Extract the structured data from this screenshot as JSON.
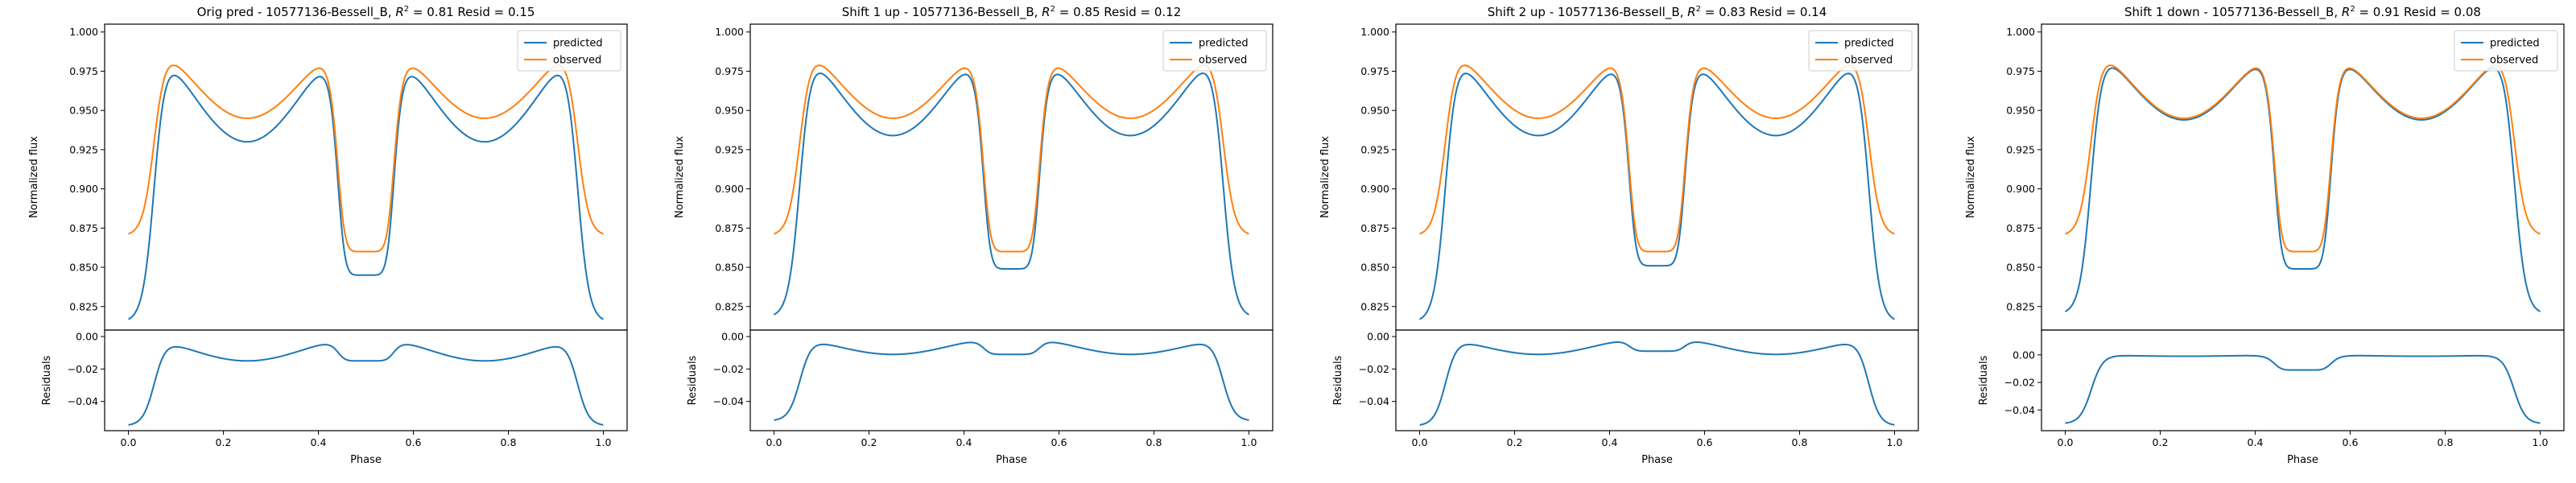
{
  "figure": {
    "xlabel": "Phase",
    "top_ylabel": "Normalized flux",
    "bottom_ylabel": "Residuals"
  },
  "colors": {
    "predicted": "#1f77b4",
    "observed": "#ff7f0e",
    "axes": "#000000"
  },
  "legend": {
    "placement": "upper right",
    "labels": [
      "predicted",
      "observed"
    ]
  },
  "chart_data": [
    {
      "type": "line",
      "title_prefix": "Orig pred - 10577136-Bessell_B, ",
      "r2_symbol": "R",
      "r2_sup": "2",
      "title_suffix": " = 0.81 Resid = 0.15",
      "pred_params": {
        "base": 0.815,
        "shoulder": 0.93,
        "dip_min": 0.845
      },
      "obs_params": {
        "base": 0.87,
        "shoulder": 0.945,
        "dip_min": 0.86
      },
      "top_ylim": [
        0.81,
        1.005
      ],
      "top_yticks": [
        "0.825",
        "0.850",
        "0.875",
        "0.900",
        "0.925",
        "0.950",
        "0.975",
        "1.000"
      ],
      "bottom_ylim": [
        -0.058,
        0.004
      ],
      "bottom_yticks": [
        "−0.04",
        "−0.02",
        "0.00"
      ],
      "xticks": [
        "0.0",
        "0.2",
        "0.4",
        "0.6",
        "0.8",
        "1.0"
      ]
    },
    {
      "type": "line",
      "title_prefix": "Shift 1 up - 10577136-Bessell_B, ",
      "r2_symbol": "R",
      "r2_sup": "2",
      "title_suffix": " = 0.85 Resid = 0.12",
      "pred_params": {
        "base": 0.818,
        "shoulder": 0.934,
        "dip_min": 0.849
      },
      "obs_params": {
        "base": 0.87,
        "shoulder": 0.945,
        "dip_min": 0.86
      },
      "top_ylim": [
        0.81,
        1.005
      ],
      "top_yticks": [
        "0.825",
        "0.850",
        "0.875",
        "0.900",
        "0.925",
        "0.950",
        "0.975",
        "1.000"
      ],
      "bottom_ylim": [
        -0.058,
        0.004
      ],
      "bottom_yticks": [
        "−0.04",
        "−0.02",
        "0.00"
      ],
      "xticks": [
        "0.0",
        "0.2",
        "0.4",
        "0.6",
        "0.8",
        "1.0"
      ]
    },
    {
      "type": "line",
      "title_prefix": "Shift 2 up - 10577136-Bessell_B, ",
      "r2_symbol": "R",
      "r2_sup": "2",
      "title_suffix": " = 0.83 Resid = 0.14",
      "pred_params": {
        "base": 0.815,
        "shoulder": 0.934,
        "dip_min": 0.851
      },
      "obs_params": {
        "base": 0.87,
        "shoulder": 0.945,
        "dip_min": 0.86
      },
      "top_ylim": [
        0.81,
        1.005
      ],
      "top_yticks": [
        "0.825",
        "0.850",
        "0.875",
        "0.900",
        "0.925",
        "0.950",
        "0.975",
        "1.000"
      ],
      "bottom_ylim": [
        -0.058,
        0.004
      ],
      "bottom_yticks": [
        "−0.04",
        "−0.02",
        "0.00"
      ],
      "xticks": [
        "0.0",
        "0.2",
        "0.4",
        "0.6",
        "0.8",
        "1.0"
      ]
    },
    {
      "type": "line",
      "title_prefix": "Shift 1 down - 10577136-Bessell_B, ",
      "r2_symbol": "R",
      "r2_sup": "2",
      "title_suffix": " = 0.91 Resid = 0.08",
      "pred_params": {
        "base": 0.82,
        "shoulder": 0.944,
        "dip_min": 0.849
      },
      "obs_params": {
        "base": 0.87,
        "shoulder": 0.945,
        "dip_min": 0.86
      },
      "top_ylim": [
        0.81,
        1.005
      ],
      "top_yticks": [
        "0.825",
        "0.850",
        "0.875",
        "0.900",
        "0.925",
        "0.950",
        "0.975",
        "1.000"
      ],
      "bottom_ylim": [
        -0.055,
        0.018
      ],
      "bottom_yticks": [
        "−0.04",
        "−0.02",
        "0.00"
      ],
      "xticks": [
        "0.0",
        "0.2",
        "0.4",
        "0.6",
        "0.8",
        "1.0"
      ]
    }
  ]
}
